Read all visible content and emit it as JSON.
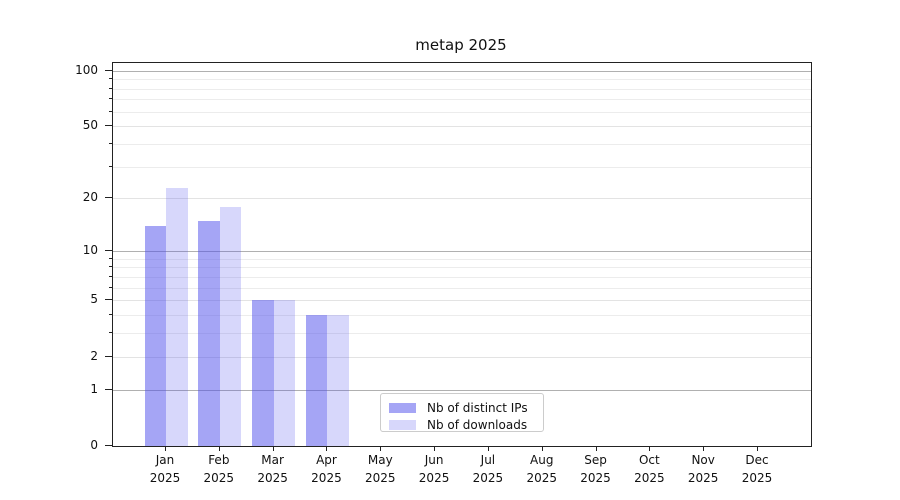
{
  "chart_data": {
    "type": "bar",
    "title": "metap 2025",
    "x_categories": [
      "Jan",
      "Feb",
      "Mar",
      "Apr",
      "May",
      "Jun",
      "Jul",
      "Aug",
      "Sep",
      "Oct",
      "Nov",
      "Dec"
    ],
    "x_year_label": "2025",
    "series": [
      {
        "name": "Nb of distinct IPs",
        "color": "rgba(75,75,235,0.5)",
        "color_hex_on_white": "#a5a5f5",
        "values": [
          14,
          15,
          5,
          4,
          0,
          0,
          0,
          0,
          0,
          0,
          0,
          0
        ]
      },
      {
        "name": "Nb of downloads",
        "color": "rgba(75,75,235,0.22)",
        "color_hex_on_white": "#d9d9f7",
        "values": [
          23,
          18,
          5,
          4,
          0,
          0,
          0,
          0,
          0,
          0,
          0,
          0
        ]
      }
    ],
    "y_scale": "log1p",
    "ylim": [
      0,
      110
    ],
    "y_ticks_labeled": [
      0,
      1,
      2,
      5,
      10,
      20,
      50,
      100
    ],
    "y_grid_major": [
      1,
      10,
      100
    ],
    "y_grid_minor_labeled": [
      2,
      5,
      20,
      50
    ],
    "y_grid_minor": [
      3,
      4,
      6,
      7,
      8,
      9,
      30,
      40,
      60,
      70,
      80,
      90
    ],
    "grid": "horizontal",
    "legend_position": "lower-center-inside",
    "colors": {
      "grid_major": "#b0b0b0",
      "grid_minor": "#ececec",
      "spine": "#222222"
    }
  }
}
